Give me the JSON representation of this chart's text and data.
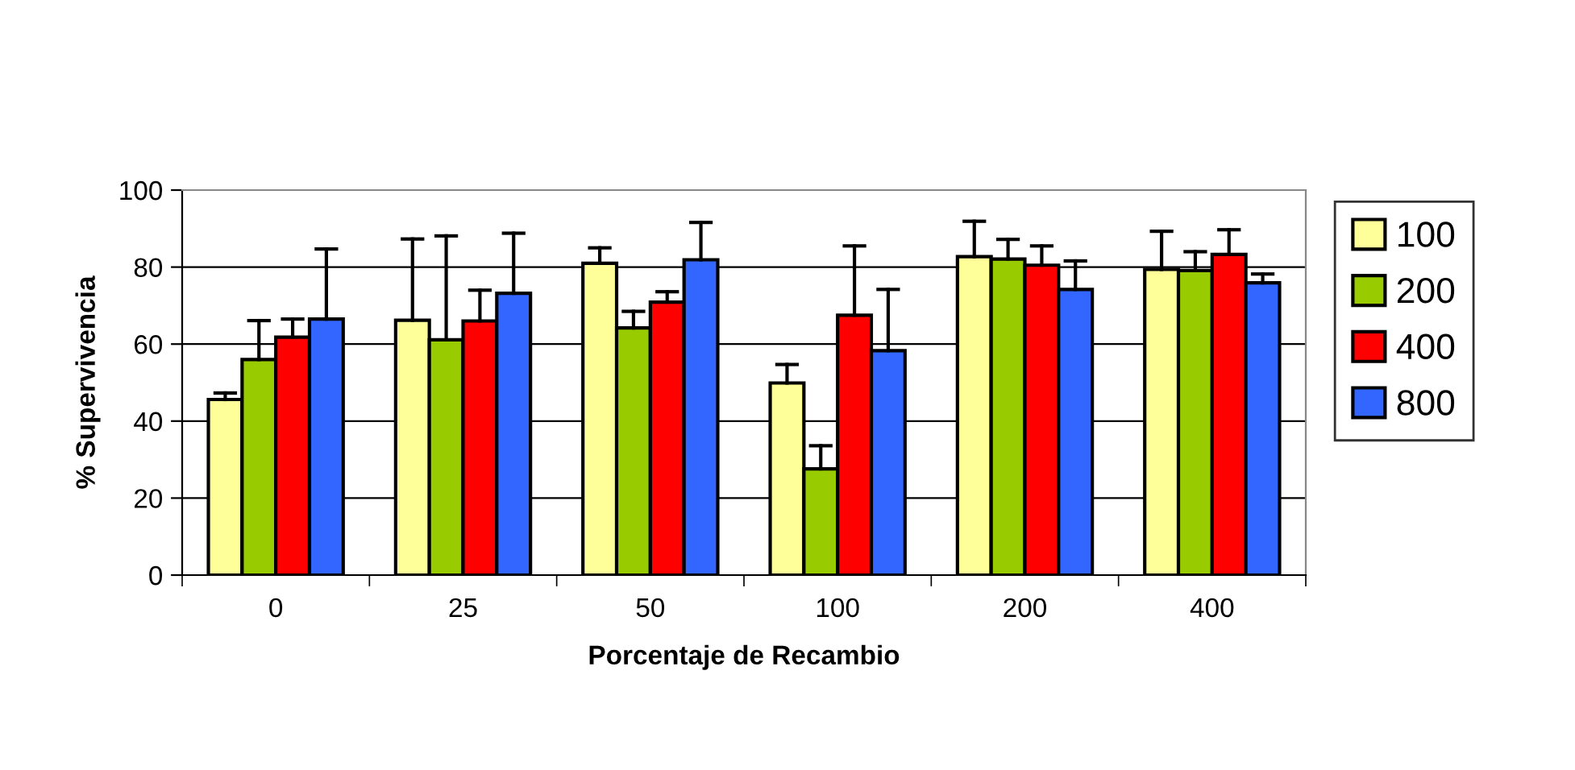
{
  "chart_data": {
    "type": "bar",
    "xlabel": "Porcentaje de Recambio",
    "ylabel": "% Supervivencia",
    "categories": [
      "0",
      "25",
      "50",
      "100",
      "200",
      "400"
    ],
    "series": [
      {
        "name": "100",
        "color": "#ffff99",
        "values": [
          45.6,
          66.2,
          81,
          49.9,
          82.7,
          79.4
        ],
        "errors": [
          [
            45.6,
            47.3
          ],
          [
            66.2,
            87.3
          ],
          [
            81,
            85
          ],
          [
            49.9,
            54.7
          ],
          [
            82.7,
            91.9
          ],
          [
            79.4,
            89.3
          ]
        ]
      },
      {
        "name": "200",
        "color": "#99cc00",
        "values": [
          56,
          61.1,
          64.2,
          27.6,
          82.1,
          79.1
        ],
        "errors": [
          [
            56,
            66.1
          ],
          [
            61.1,
            88.1
          ],
          [
            64.2,
            68.5
          ],
          [
            27.6,
            33.6
          ],
          [
            82.1,
            87.2
          ],
          [
            79.1,
            84
          ]
        ]
      },
      {
        "name": "400",
        "color": "#ff0000",
        "values": [
          61.8,
          66,
          70.9,
          67.5,
          80.5,
          83.3
        ],
        "errors": [
          [
            61.8,
            66.5
          ],
          [
            66,
            74
          ],
          [
            70.9,
            73.6
          ],
          [
            67.5,
            85.5
          ],
          [
            80.5,
            85.5
          ],
          [
            83.3,
            89.7
          ]
        ]
      },
      {
        "name": "800",
        "color": "#3366ff",
        "values": [
          66.5,
          73.2,
          81.9,
          58.3,
          74.2,
          75.9
        ],
        "errors": [
          [
            66.5,
            84.7
          ],
          [
            73.2,
            88.8
          ],
          [
            81.9,
            91.6
          ],
          [
            58.3,
            74.2
          ],
          [
            74.2,
            81.6
          ],
          [
            75.9,
            78.2
          ]
        ]
      }
    ],
    "ylim": [
      0,
      100
    ],
    "yticks": [
      0,
      20,
      40,
      60,
      80,
      100
    ],
    "grid": "y",
    "legend": "right"
  }
}
